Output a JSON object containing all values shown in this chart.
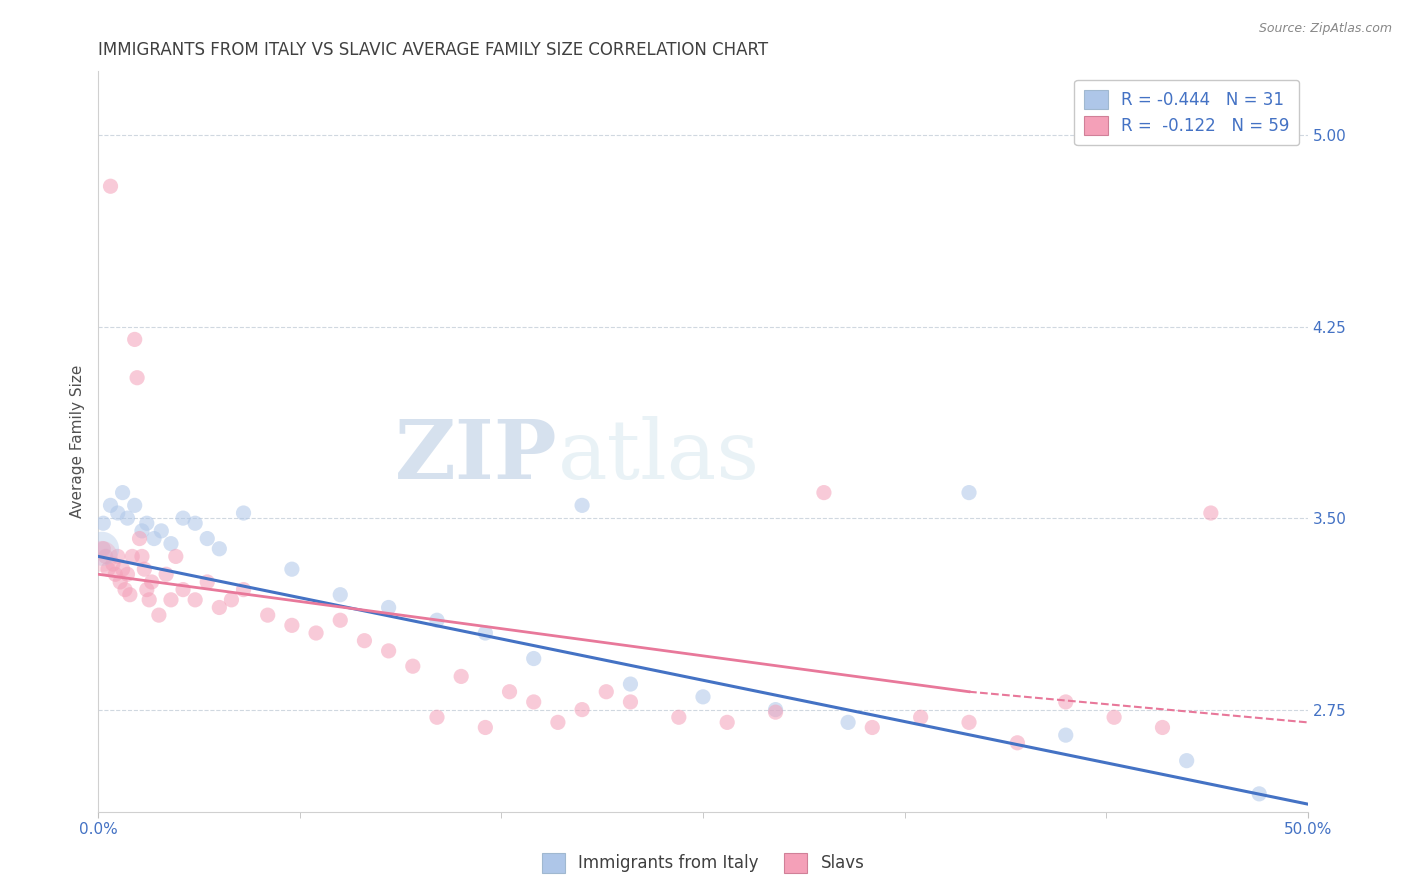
{
  "title": "IMMIGRANTS FROM ITALY VS SLAVIC AVERAGE FAMILY SIZE CORRELATION CHART",
  "source_text": "Source: ZipAtlas.com",
  "ylabel": "Average Family Size",
  "right_yticks": [
    5.0,
    4.25,
    3.5,
    2.75
  ],
  "xlim": [
    0.0,
    50.0
  ],
  "ylim": [
    2.35,
    5.25
  ],
  "watermark": "ZIPatlas",
  "legend": {
    "italy": {
      "R": "-0.444",
      "N": "31",
      "color": "#aec6e8",
      "line_color": "#4472c4"
    },
    "slavs": {
      "R": "-0.122",
      "N": "59",
      "color": "#f4a0b8",
      "line_color": "#e8789a"
    }
  },
  "italy_scatter_x": [
    0.2,
    0.5,
    0.8,
    1.0,
    1.2,
    1.5,
    1.8,
    2.0,
    2.3,
    2.6,
    3.0,
    3.5,
    4.0,
    4.5,
    5.0,
    6.0,
    8.0,
    10.0,
    12.0,
    14.0,
    16.0,
    18.0,
    20.0,
    22.0,
    25.0,
    28.0,
    31.0,
    36.0,
    40.0,
    45.0,
    48.0
  ],
  "italy_scatter_y": [
    3.48,
    3.55,
    3.52,
    3.6,
    3.5,
    3.55,
    3.45,
    3.48,
    3.42,
    3.45,
    3.4,
    3.5,
    3.48,
    3.42,
    3.38,
    3.52,
    3.3,
    3.2,
    3.15,
    3.1,
    3.05,
    2.95,
    3.55,
    2.85,
    2.8,
    2.75,
    2.7,
    3.6,
    2.65,
    2.55,
    2.42
  ],
  "slavs_scatter_x": [
    0.2,
    0.3,
    0.4,
    0.5,
    0.6,
    0.7,
    0.8,
    0.9,
    1.0,
    1.1,
    1.2,
    1.3,
    1.4,
    1.5,
    1.6,
    1.7,
    1.8,
    1.9,
    2.0,
    2.1,
    2.2,
    2.5,
    2.8,
    3.0,
    3.2,
    3.5,
    4.0,
    4.5,
    5.0,
    5.5,
    6.0,
    7.0,
    8.0,
    9.0,
    10.0,
    11.0,
    12.0,
    13.0,
    14.0,
    15.0,
    16.0,
    17.0,
    18.0,
    19.0,
    20.0,
    21.0,
    22.0,
    24.0,
    26.0,
    28.0,
    30.0,
    32.0,
    34.0,
    36.0,
    38.0,
    40.0,
    42.0,
    44.0,
    46.0
  ],
  "slavs_scatter_y": [
    3.38,
    3.35,
    3.3,
    4.8,
    3.32,
    3.28,
    3.35,
    3.25,
    3.3,
    3.22,
    3.28,
    3.2,
    3.35,
    4.2,
    4.05,
    3.42,
    3.35,
    3.3,
    3.22,
    3.18,
    3.25,
    3.12,
    3.28,
    3.18,
    3.35,
    3.22,
    3.18,
    3.25,
    3.15,
    3.18,
    3.22,
    3.12,
    3.08,
    3.05,
    3.1,
    3.02,
    2.98,
    2.92,
    2.72,
    2.88,
    2.68,
    2.82,
    2.78,
    2.7,
    2.75,
    2.82,
    2.78,
    2.72,
    2.7,
    2.74,
    3.6,
    2.68,
    2.72,
    2.7,
    2.62,
    2.78,
    2.72,
    2.68,
    3.52
  ],
  "italy_trend": {
    "x_start": 0.0,
    "x_end": 50.0,
    "y_start": 3.35,
    "y_end": 2.38
  },
  "slavs_trend_solid": {
    "x_start": 0.0,
    "x_end": 36.0,
    "y_start": 3.28,
    "y_end": 2.82
  },
  "slavs_trend_dashed": {
    "x_start": 36.0,
    "x_end": 50.0,
    "y_start": 2.82,
    "y_end": 2.7
  },
  "grid_color": "#d0d8e0",
  "background_color": "#ffffff",
  "title_color": "#404040",
  "axis_label_color": "#4472c4",
  "scatter_alpha": 0.55,
  "scatter_size": 120,
  "title_fontsize": 12,
  "axis_fontsize": 11,
  "legend_fontsize": 12
}
